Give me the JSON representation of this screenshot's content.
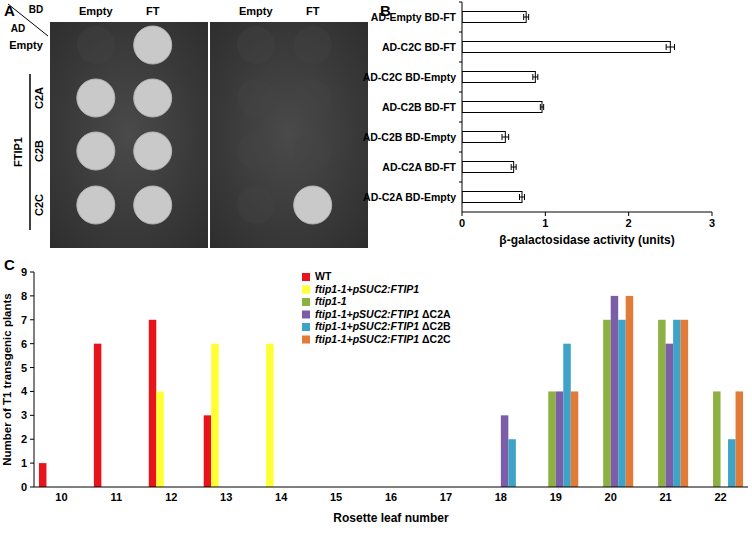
{
  "panel_a": {
    "panel_label": "A",
    "ad_label": "AD",
    "bd_label": "BD",
    "columns": [
      "Empty",
      "FT"
    ],
    "rows": [
      "Empty",
      "C2A",
      "C2B",
      "C2C"
    ],
    "group_label": "FTIP1",
    "plates": [
      {
        "growth": [
          [
            false,
            true
          ],
          [
            true,
            true
          ],
          [
            true,
            true
          ],
          [
            true,
            true
          ]
        ]
      },
      {
        "growth": [
          [
            false,
            false
          ],
          [
            false,
            false
          ],
          [
            false,
            false
          ],
          [
            false,
            true
          ]
        ]
      }
    ]
  },
  "chart_data": [
    {
      "type": "bar",
      "orientation": "horizontal",
      "panel_label": "B",
      "x_label": "β-galactosidase activity (units)",
      "categories": [
        "AD-Empty BD-FT",
        "AD-C2C BD-FT",
        "AD-C2C BD-Empty",
        "AD-C2B BD-FT",
        "AD-C2B BD-Empty",
        "AD-C2A BD-FT",
        "AD-C2A BD-Empty"
      ],
      "values": [
        0.77,
        2.5,
        0.88,
        0.96,
        0.52,
        0.62,
        0.72
      ],
      "errors": [
        0.03,
        0.05,
        0.03,
        0.02,
        0.04,
        0.03,
        0.03
      ],
      "color": "#ffffff",
      "xlim": [
        0,
        3
      ],
      "xticks": [
        0,
        1,
        2,
        3
      ]
    },
    {
      "type": "bar",
      "panel_label": "C",
      "x_label": "Rosette leaf number",
      "y_label": "Number of T1 transgenic plants",
      "categories": [
        10,
        11,
        12,
        13,
        14,
        15,
        16,
        17,
        18,
        19,
        20,
        21,
        22
      ],
      "ylim": [
        0,
        9
      ],
      "yticks": [
        0,
        1,
        2,
        3,
        4,
        5,
        6,
        7,
        8,
        9
      ],
      "legend": "top",
      "series": [
        {
          "name": "WT",
          "color": "#e8141b",
          "values": [
            1,
            6,
            7,
            3,
            0,
            0,
            0,
            0,
            0,
            0,
            0,
            0,
            0
          ]
        },
        {
          "name": "ftip1-1+pSUC2:FTIP1",
          "color": "#ffff33",
          "values": [
            0,
            0,
            4,
            6,
            6,
            0,
            0,
            0,
            0,
            0,
            0,
            0,
            0
          ]
        },
        {
          "name": "ftip1-1",
          "color": "#8db043",
          "values": [
            0,
            0,
            0,
            0,
            0,
            0,
            0,
            0,
            0,
            4,
            7,
            7,
            4
          ]
        },
        {
          "name": "ftip1-1+pSUC2:FTIP1 ΔC2A",
          "color": "#7b5ea7",
          "values": [
            0,
            0,
            0,
            0,
            0,
            0,
            0,
            0,
            3,
            4,
            8,
            6,
            0
          ]
        },
        {
          "name": "ftip1-1+pSUC2:FTIP1 ΔC2B",
          "color": "#3fa3c8",
          "values": [
            0,
            0,
            0,
            0,
            0,
            0,
            0,
            0,
            2,
            6,
            7,
            7,
            2
          ]
        },
        {
          "name": "ftip1-1+pSUC2:FTIP1 ΔC2C",
          "color": "#e07b39",
          "values": [
            0,
            0,
            0,
            0,
            0,
            0,
            0,
            0,
            0,
            4,
            8,
            7,
            4
          ]
        }
      ]
    }
  ]
}
